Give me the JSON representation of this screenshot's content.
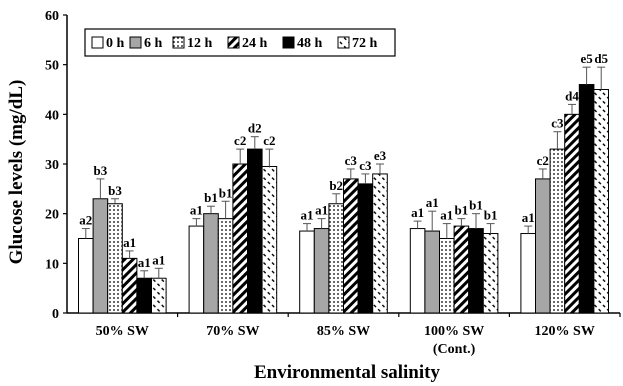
{
  "chart_data": {
    "type": "bar",
    "title": "",
    "xlabel": "Environmental salinity",
    "ylabel": "Glucose levels (mg/dL)",
    "ylim": [
      0,
      60
    ],
    "yticks": [
      "0",
      "10",
      "20",
      "30",
      "40",
      "50",
      "60"
    ],
    "grid": false,
    "legend_position": "top-left",
    "categories": [
      {
        "line1": "50% SW",
        "line2": ""
      },
      {
        "line1": "70% SW",
        "line2": ""
      },
      {
        "line1": "85% SW",
        "line2": ""
      },
      {
        "line1": "100% SW",
        "line2": "(Cont.)"
      },
      {
        "line1": "120% SW",
        "line2": ""
      }
    ],
    "series": [
      {
        "name": "0 h",
        "pattern": "white",
        "values": [
          15,
          17.5,
          16.5,
          17,
          16
        ],
        "errors": [
          2,
          1.5,
          1.5,
          1.5,
          1.5
        ],
        "labels": [
          "a2",
          "a1",
          "a1",
          "a1",
          "a1"
        ]
      },
      {
        "name": "6 h",
        "pattern": "gray",
        "values": [
          23,
          20,
          17,
          16.5,
          27
        ],
        "errors": [
          4,
          1.5,
          2,
          4,
          2
        ],
        "labels": [
          "b3",
          "b1",
          "a1",
          "a1",
          "c2"
        ]
      },
      {
        "name": "12 h",
        "pattern": "dots",
        "values": [
          22,
          19,
          22,
          15,
          33
        ],
        "errors": [
          1,
          3.5,
          2,
          3,
          3.5
        ],
        "labels": [
          "b3",
          "b1",
          "b2",
          "a1",
          "c3"
        ]
      },
      {
        "name": "24 h",
        "pattern": "diagonal",
        "values": [
          11,
          30,
          27,
          17.5,
          40
        ],
        "errors": [
          1.5,
          3,
          2,
          1.5,
          2
        ],
        "labels": [
          "a1",
          "c2",
          "c3",
          "b1",
          "d4"
        ]
      },
      {
        "name": "48 h",
        "pattern": "black",
        "values": [
          7,
          33,
          26,
          17,
          46
        ],
        "errors": [
          1.5,
          2.5,
          2,
          3,
          3.5
        ],
        "labels": [
          "a1",
          "d2",
          "c3",
          "b1",
          "e5"
        ]
      },
      {
        "name": "72 h",
        "pattern": "dashes",
        "values": [
          7,
          29.5,
          28,
          16,
          45
        ],
        "errors": [
          2,
          3.5,
          2,
          2,
          4.5
        ],
        "labels": [
          "a1",
          "c2",
          "e3",
          "b1",
          "d5"
        ]
      }
    ]
  }
}
